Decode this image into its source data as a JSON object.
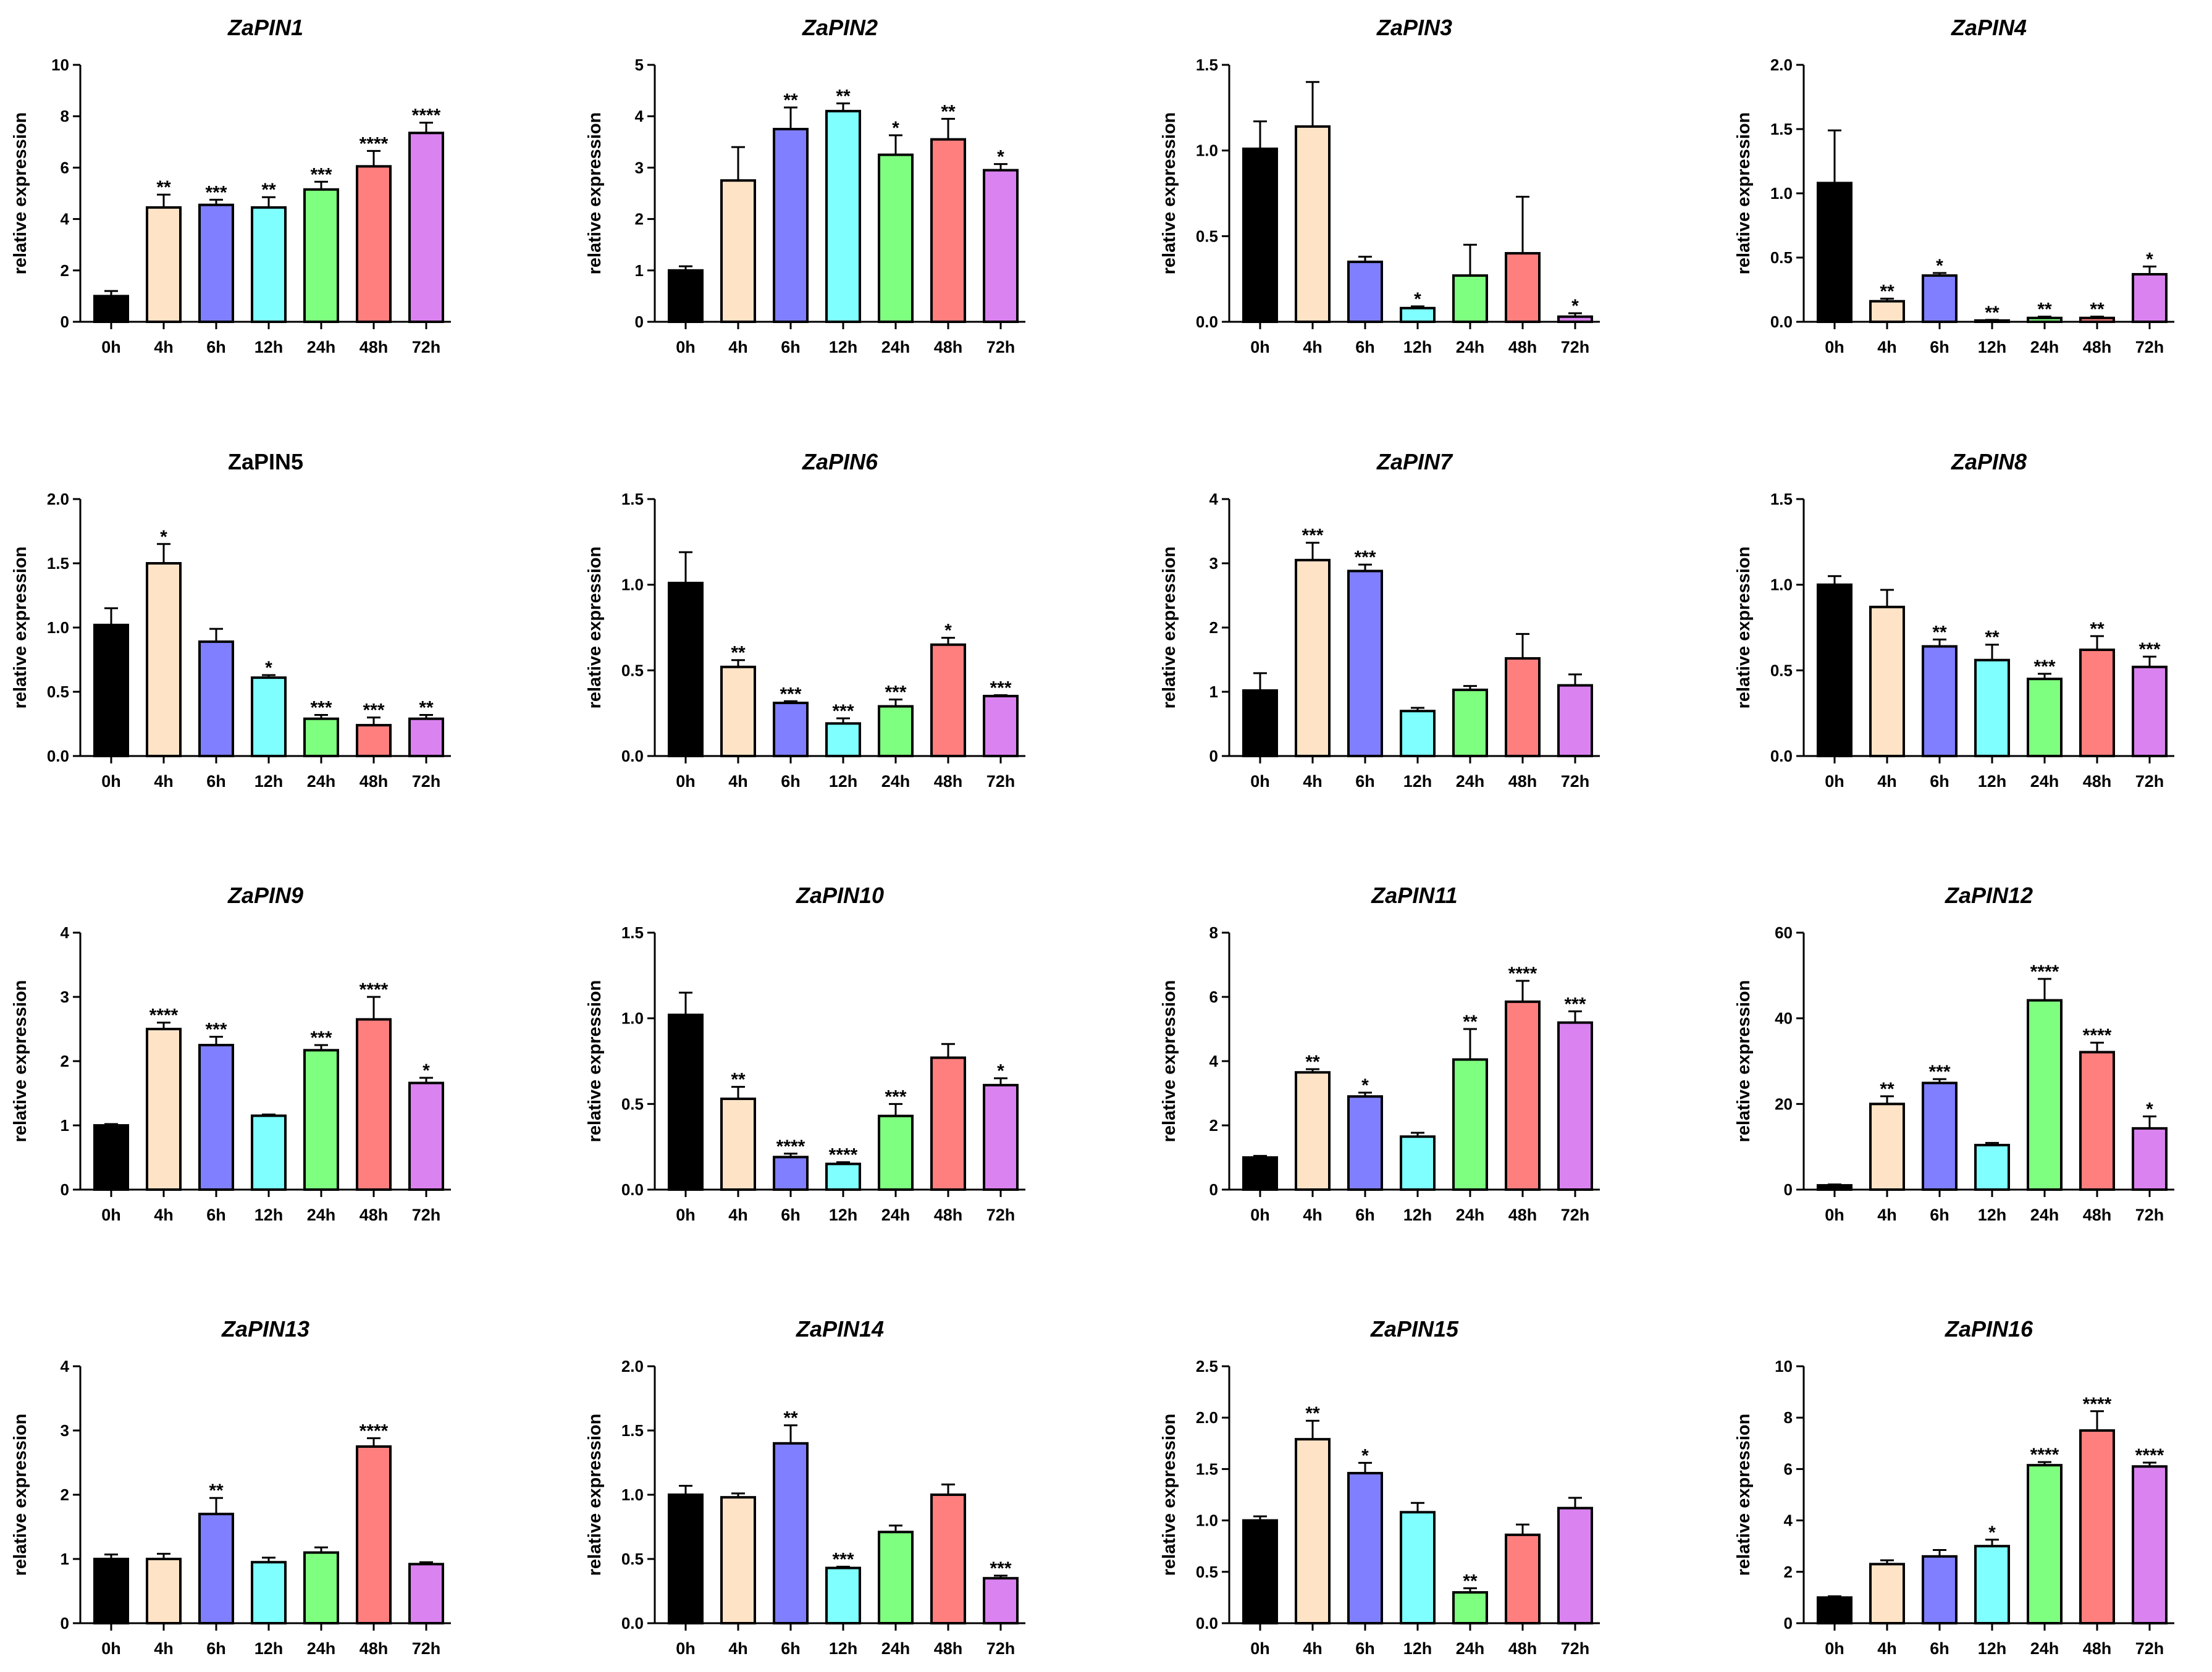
{
  "colors": {
    "bars": [
      "#000000",
      "#FFE3C6",
      "#7F7FFF",
      "#7FFFFF",
      "#7FFF7F",
      "#FF7F7F",
      "#DA82F0"
    ],
    "stroke": "#000000"
  },
  "chart_data": [
    {
      "type": "bar",
      "title": "ZaPIN1",
      "italic": true,
      "ylabel": "relative expression",
      "categories": [
        "0h",
        "4h",
        "6h",
        "12h",
        "24h",
        "48h",
        "72h"
      ],
      "ylim": [
        0,
        10
      ],
      "yticks": [
        "0",
        "2",
        "4",
        "6",
        "8",
        "10"
      ],
      "values": [
        1.0,
        4.45,
        4.55,
        4.45,
        5.15,
        6.05,
        7.35
      ],
      "errors": [
        0.2,
        0.5,
        0.2,
        0.4,
        0.3,
        0.6,
        0.4
      ],
      "significance": [
        "",
        "**",
        "***",
        "**",
        "***",
        "****",
        "****"
      ]
    },
    {
      "type": "bar",
      "title": "ZaPIN2",
      "italic": true,
      "ylabel": "relative expression",
      "categories": [
        "0h",
        "4h",
        "6h",
        "12h",
        "24h",
        "48h",
        "72h"
      ],
      "ylim": [
        0,
        5
      ],
      "yticks": [
        "0",
        "1",
        "2",
        "3",
        "4",
        "5"
      ],
      "values": [
        1.0,
        2.75,
        3.75,
        4.1,
        3.25,
        3.55,
        2.95
      ],
      "errors": [
        0.08,
        0.65,
        0.42,
        0.15,
        0.38,
        0.4,
        0.12
      ],
      "significance": [
        "",
        "",
        "**",
        "**",
        "*",
        "**",
        "*"
      ]
    },
    {
      "type": "bar",
      "title": "ZaPIN3",
      "italic": true,
      "ylabel": "relative expression",
      "categories": [
        "0h",
        "4h",
        "6h",
        "12h",
        "24h",
        "48h",
        "72h"
      ],
      "ylim": [
        0,
        1.5
      ],
      "yticks": [
        "0.0",
        "0.5",
        "1.0",
        "1.5"
      ],
      "values": [
        1.01,
        1.14,
        0.35,
        0.08,
        0.27,
        0.4,
        0.03
      ],
      "errors": [
        0.16,
        0.26,
        0.03,
        0.01,
        0.18,
        0.33,
        0.02
      ],
      "significance": [
        "",
        "",
        "",
        "*",
        "",
        "",
        "*"
      ]
    },
    {
      "type": "bar",
      "title": "ZaPIN4",
      "italic": true,
      "ylabel": "relative expression",
      "categories": [
        "0h",
        "4h",
        "6h",
        "12h",
        "24h",
        "48h",
        "72h"
      ],
      "ylim": [
        0,
        2.0
      ],
      "yticks": [
        "0.0",
        "0.5",
        "1.0",
        "1.5",
        "2.0"
      ],
      "values": [
        1.08,
        0.16,
        0.36,
        0.01,
        0.03,
        0.03,
        0.37
      ],
      "errors": [
        0.41,
        0.02,
        0.02,
        0.005,
        0.01,
        0.01,
        0.06
      ],
      "significance": [
        "",
        "**",
        "*",
        "**",
        "**",
        "**",
        "*"
      ]
    },
    {
      "type": "bar",
      "title": "ZaPIN5",
      "italic": false,
      "ylabel": "relative expression",
      "categories": [
        "0h",
        "4h",
        "6h",
        "12h",
        "24h",
        "48h",
        "72h"
      ],
      "ylim": [
        0,
        2.0
      ],
      "yticks": [
        "0.0",
        "0.5",
        "1.0",
        "1.5",
        "2.0"
      ],
      "values": [
        1.02,
        1.5,
        0.89,
        0.61,
        0.29,
        0.24,
        0.29
      ],
      "errors": [
        0.13,
        0.15,
        0.1,
        0.02,
        0.03,
        0.06,
        0.03
      ],
      "significance": [
        "",
        "*",
        "",
        "*",
        "***",
        "***",
        "**"
      ]
    },
    {
      "type": "bar",
      "title": "ZaPIN6",
      "italic": true,
      "ylabel": "relative expression",
      "categories": [
        "0h",
        "4h",
        "6h",
        "12h",
        "24h",
        "48h",
        "72h"
      ],
      "ylim": [
        0,
        1.5
      ],
      "yticks": [
        "0.0",
        "0.5",
        "1.0",
        "1.5"
      ],
      "values": [
        1.01,
        0.52,
        0.31,
        0.19,
        0.29,
        0.65,
        0.35
      ],
      "errors": [
        0.18,
        0.04,
        0.01,
        0.03,
        0.04,
        0.04,
        0.005
      ],
      "significance": [
        "",
        "**",
        "***",
        "***",
        "***",
        "*",
        "***"
      ]
    },
    {
      "type": "bar",
      "title": "ZaPIN7",
      "italic": true,
      "ylabel": "relative expression",
      "categories": [
        "0h",
        "4h",
        "6h",
        "12h",
        "24h",
        "48h",
        "72h"
      ],
      "ylim": [
        0,
        4
      ],
      "yticks": [
        "0",
        "1",
        "2",
        "3",
        "4"
      ],
      "values": [
        1.02,
        3.05,
        2.88,
        0.7,
        1.03,
        1.52,
        1.1
      ],
      "errors": [
        0.27,
        0.27,
        0.1,
        0.05,
        0.06,
        0.38,
        0.17
      ],
      "significance": [
        "",
        "***",
        "***",
        "",
        "",
        "",
        ""
      ]
    },
    {
      "type": "bar",
      "title": "ZaPIN8",
      "italic": true,
      "ylabel": "relative expression",
      "categories": [
        "0h",
        "4h",
        "6h",
        "12h",
        "24h",
        "48h",
        "72h"
      ],
      "ylim": [
        0,
        1.5
      ],
      "yticks": [
        "0.0",
        "0.5",
        "1.0",
        "1.5"
      ],
      "values": [
        1.0,
        0.87,
        0.64,
        0.56,
        0.45,
        0.62,
        0.52
      ],
      "errors": [
        0.05,
        0.1,
        0.04,
        0.09,
        0.03,
        0.08,
        0.06
      ],
      "significance": [
        "",
        "",
        "**",
        "**",
        "***",
        "**",
        "***"
      ]
    },
    {
      "type": "bar",
      "title": "ZaPIN9",
      "italic": true,
      "ylabel": "relative expression",
      "categories": [
        "0h",
        "4h",
        "6h",
        "12h",
        "24h",
        "48h",
        "72h"
      ],
      "ylim": [
        0,
        4
      ],
      "yticks": [
        "0",
        "1",
        "2",
        "3",
        "4"
      ],
      "values": [
        1.0,
        2.5,
        2.25,
        1.15,
        2.17,
        2.65,
        1.66
      ],
      "errors": [
        0.02,
        0.1,
        0.13,
        0.02,
        0.08,
        0.35,
        0.08
      ],
      "significance": [
        "",
        "****",
        "***",
        "",
        "***",
        "****",
        "*"
      ]
    },
    {
      "type": "bar",
      "title": "ZaPIN10",
      "italic": true,
      "ylabel": "relative expression",
      "categories": [
        "0h",
        "4h",
        "6h",
        "12h",
        "24h",
        "48h",
        "72h"
      ],
      "ylim": [
        0,
        1.5
      ],
      "yticks": [
        "0.0",
        "0.5",
        "1.0",
        "1.5"
      ],
      "values": [
        1.02,
        0.53,
        0.19,
        0.15,
        0.43,
        0.77,
        0.61
      ],
      "errors": [
        0.13,
        0.07,
        0.02,
        0.01,
        0.07,
        0.08,
        0.04
      ],
      "significance": [
        "",
        "**",
        "****",
        "****",
        "***",
        "",
        "*"
      ]
    },
    {
      "type": "bar",
      "title": "ZaPIN11",
      "italic": true,
      "ylabel": "relative expression",
      "categories": [
        "0h",
        "4h",
        "6h",
        "12h",
        "24h",
        "48h",
        "72h"
      ],
      "ylim": [
        0,
        8
      ],
      "yticks": [
        "0",
        "2",
        "4",
        "6",
        "8"
      ],
      "values": [
        1.0,
        3.65,
        2.9,
        1.65,
        4.05,
        5.85,
        5.2
      ],
      "errors": [
        0.05,
        0.1,
        0.12,
        0.12,
        0.95,
        0.65,
        0.35
      ],
      "significance": [
        "",
        "**",
        "*",
        "",
        "**",
        "****",
        "***"
      ]
    },
    {
      "type": "bar",
      "title": "ZaPIN12",
      "italic": true,
      "ylabel": "relative expression",
      "categories": [
        "0h",
        "4h",
        "6h",
        "12h",
        "24h",
        "48h",
        "72h"
      ],
      "ylim": [
        0,
        60
      ],
      "yticks": [
        "0",
        "20",
        "40",
        "60"
      ],
      "values": [
        1.0,
        20.0,
        24.9,
        10.4,
        44.2,
        32.1,
        14.3
      ],
      "errors": [
        0.2,
        1.8,
        0.9,
        0.5,
        5.0,
        2.2,
        2.8
      ],
      "significance": [
        "",
        "**",
        "***",
        "",
        "****",
        "****",
        "*"
      ]
    },
    {
      "type": "bar",
      "title": "ZaPIN13",
      "italic": true,
      "ylabel": "relative expression",
      "categories": [
        "0h",
        "4h",
        "6h",
        "12h",
        "24h",
        "48h",
        "72h"
      ],
      "ylim": [
        0,
        4
      ],
      "yticks": [
        "0",
        "1",
        "2",
        "3",
        "4"
      ],
      "values": [
        1.0,
        1.0,
        1.7,
        0.95,
        1.1,
        2.75,
        0.92
      ],
      "errors": [
        0.07,
        0.08,
        0.25,
        0.07,
        0.08,
        0.13,
        0.03
      ],
      "significance": [
        "",
        "",
        "**",
        "",
        "",
        "****",
        ""
      ]
    },
    {
      "type": "bar",
      "title": "ZaPIN14",
      "italic": true,
      "ylabel": "relative expression",
      "categories": [
        "0h",
        "4h",
        "6h",
        "12h",
        "24h",
        "48h",
        "72h"
      ],
      "ylim": [
        0,
        2.0
      ],
      "yticks": [
        "0.0",
        "0.5",
        "1.0",
        "1.5",
        "2.0"
      ],
      "values": [
        1.0,
        0.98,
        1.4,
        0.43,
        0.71,
        1.0,
        0.35
      ],
      "errors": [
        0.07,
        0.03,
        0.14,
        0.01,
        0.05,
        0.08,
        0.02
      ],
      "significance": [
        "",
        "",
        "**",
        "***",
        "",
        "",
        "***"
      ]
    },
    {
      "type": "bar",
      "title": "ZaPIN15",
      "italic": true,
      "ylabel": "relative expression",
      "categories": [
        "0h",
        "4h",
        "6h",
        "12h",
        "24h",
        "48h",
        "72h"
      ],
      "ylim": [
        0,
        2.5
      ],
      "yticks": [
        "0.0",
        "0.5",
        "1.0",
        "1.5",
        "2.0",
        "2.5"
      ],
      "values": [
        1.0,
        1.79,
        1.46,
        1.08,
        0.3,
        0.86,
        1.12
      ],
      "errors": [
        0.04,
        0.18,
        0.1,
        0.09,
        0.04,
        0.1,
        0.1
      ],
      "significance": [
        "",
        "**",
        "*",
        "",
        "**",
        "",
        ""
      ]
    },
    {
      "type": "bar",
      "title": "ZaPIN16",
      "italic": true,
      "ylabel": "relative expression",
      "categories": [
        "0h",
        "4h",
        "6h",
        "12h",
        "24h",
        "48h",
        "72h"
      ],
      "ylim": [
        0,
        10
      ],
      "yticks": [
        "0",
        "2",
        "4",
        "6",
        "8",
        "10"
      ],
      "values": [
        1.0,
        2.3,
        2.6,
        3.0,
        6.15,
        7.5,
        6.1
      ],
      "errors": [
        0.05,
        0.15,
        0.25,
        0.25,
        0.12,
        0.75,
        0.15
      ],
      "significance": [
        "",
        "",
        "",
        "*",
        "****",
        "****",
        "****"
      ]
    }
  ]
}
